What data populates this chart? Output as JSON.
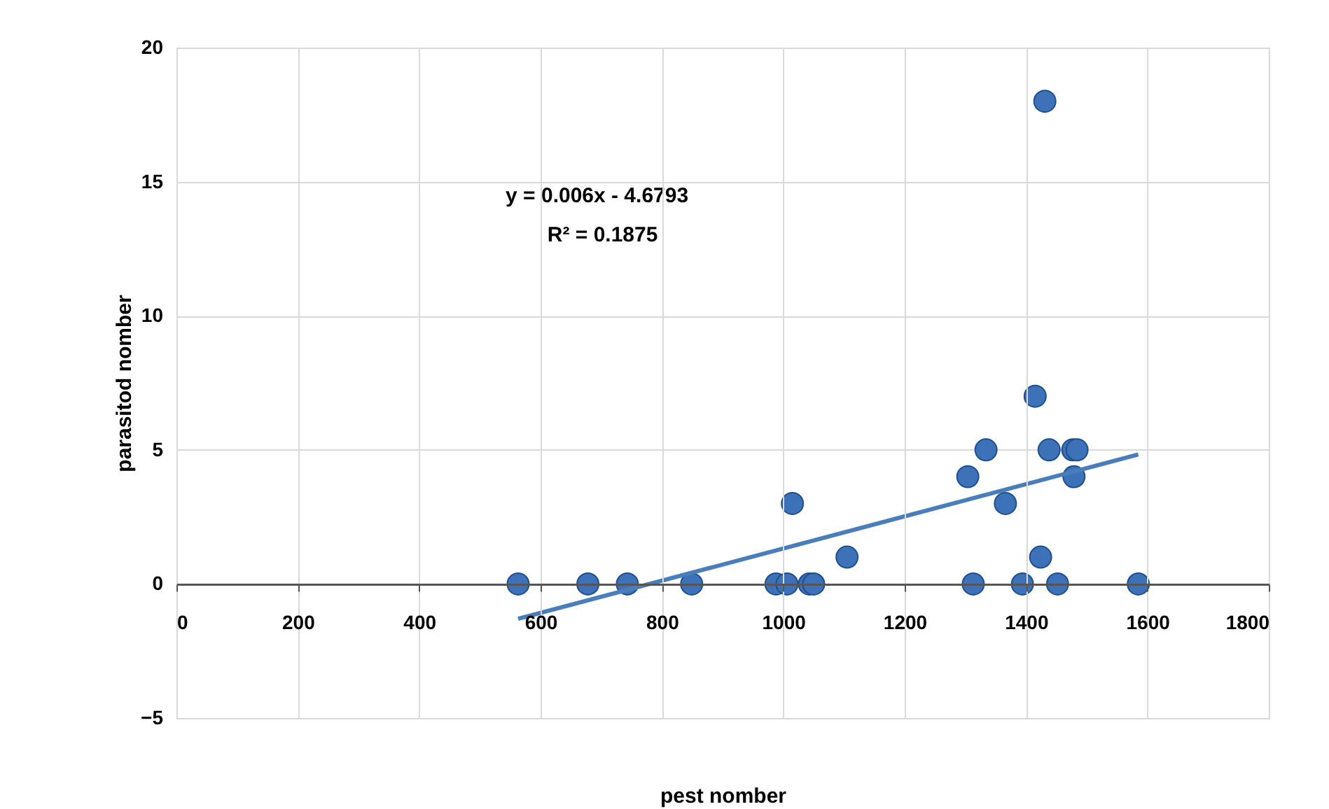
{
  "chart_data": {
    "type": "scatter",
    "xlabel": "pest nomber",
    "ylabel": "parasitod nomber",
    "annotations": [
      "y = 0.006x - 4.6793",
      "R² = 0.1875"
    ],
    "series": [
      {
        "color": "#3d72b8",
        "x": [
          563,
          678,
          743,
          849,
          988,
          1006,
          1015,
          1043,
          1050,
          1105,
          1304,
          1313,
          1334,
          1366,
          1394,
          1415,
          1424,
          1431,
          1438,
          1452,
          1477,
          1484,
          1479,
          1585
        ],
        "values": [
          0,
          0,
          0,
          0,
          0,
          0,
          3,
          0,
          0,
          1,
          4,
          0,
          5,
          3,
          0,
          7,
          1,
          18,
          5,
          0,
          5,
          5,
          4,
          0
        ]
      },
      {
        "type": "line",
        "marker": "none",
        "color": "#4a7ebb",
        "x": [
          563,
          1585
        ],
        "values": [
          -1.3,
          4.83
        ]
      }
    ],
    "xlim": [
      0,
      1800
    ],
    "xticks": [
      0,
      200,
      400,
      600,
      800,
      1000,
      1200,
      1400,
      1600,
      1800
    ],
    "ylim": [
      -5,
      20
    ],
    "yticks": [
      -5,
      0,
      5,
      10,
      15,
      20
    ],
    "grid": true,
    "marker": "circle",
    "line_style": "solid"
  }
}
